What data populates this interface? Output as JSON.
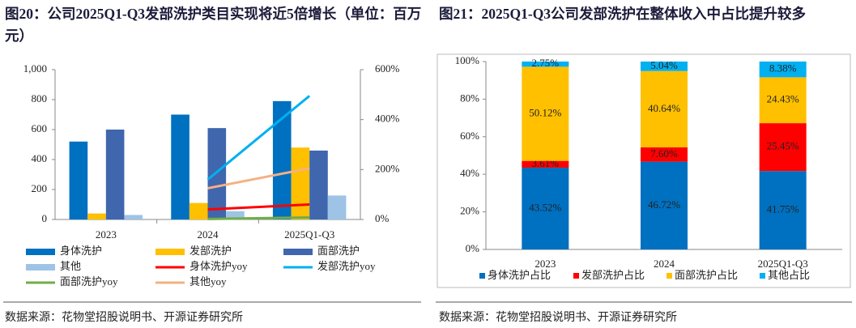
{
  "chart_data": [
    {
      "type": "bar",
      "title": "图20：公司2025Q1-Q3发部洗护类目实现将近5倍增长（单位：百万元）",
      "source": "数据来源：花物堂招股说明书、开源证券研究所",
      "categories": [
        "2023",
        "2024",
        "2025Q1-Q3"
      ],
      "ylim": [
        0,
        1000
      ],
      "yticks": [
        0,
        200,
        400,
        600,
        800,
        {
          "value": 1000,
          "label": "1,000"
        }
      ],
      "y2lim": [
        0,
        600
      ],
      "y2ticks": [
        {
          "value": 0,
          "label": "0%"
        },
        {
          "value": 200,
          "label": "200%"
        },
        {
          "value": 400,
          "label": "400%"
        },
        {
          "value": 600,
          "label": "600%"
        }
      ],
      "series": [
        {
          "name": "身体洗护",
          "color": "#0070c0",
          "values": [
            520,
            700,
            790
          ]
        },
        {
          "name": "发部洗护",
          "color": "#ffc000",
          "values": [
            40,
            110,
            480
          ]
        },
        {
          "name": "面部洗护",
          "color": "#4066ae",
          "values": [
            600,
            610,
            460
          ]
        },
        {
          "name": "其他",
          "color": "#9dc3e6",
          "values": [
            30,
            55,
            160
          ]
        },
        {
          "name": "身体洗护yoy",
          "color": "#ff0000",
          "type": "line",
          "axis": "y2",
          "values": [
            null,
            40,
            60
          ]
        },
        {
          "name": "发部洗护yoy",
          "color": "#00b0f0",
          "type": "line",
          "axis": "y2",
          "values": [
            null,
            160,
            495
          ]
        },
        {
          "name": "面部洗护yoy",
          "color": "#70ad47",
          "type": "line",
          "axis": "y2",
          "values": [
            null,
            2,
            8
          ]
        },
        {
          "name": "其他yoy",
          "color": "#f4b183",
          "type": "line",
          "axis": "y2",
          "values": [
            null,
            125,
            205
          ]
        }
      ]
    },
    {
      "type": "stacked_bar",
      "title": "图21：2025Q1-Q3公司发部洗护在整体收入中占比提升较多",
      "source": "数据来源：花物堂招股说明书、开源证券研究所",
      "categories": [
        "2023",
        "2024",
        "2025Q1-Q3"
      ],
      "ylim": [
        0,
        100
      ],
      "yticks": [
        {
          "value": 0,
          "label": "0%"
        },
        {
          "value": 20,
          "label": "20%"
        },
        {
          "value": 40,
          "label": "40%"
        },
        {
          "value": 60,
          "label": "60%"
        },
        {
          "value": 80,
          "label": "80%"
        },
        {
          "value": 100,
          "label": "100%"
        }
      ],
      "series": [
        {
          "name": "身体洗护占比",
          "color": "#0070c0",
          "values": [
            43.52,
            46.72,
            41.75
          ],
          "value_labels": [
            "43.52%",
            "46.72%",
            "41.75%"
          ]
        },
        {
          "name": "发部洗护占比",
          "color": "#ff0000",
          "values": [
            3.61,
            7.6,
            25.45
          ],
          "value_labels": [
            "3.61%",
            "7.60%",
            "25.45%"
          ]
        },
        {
          "name": "面部洗护占比",
          "color": "#ffc000",
          "values": [
            50.12,
            40.64,
            24.43
          ],
          "value_labels": [
            "50.12%",
            "40.64%",
            "24.43%"
          ]
        },
        {
          "name": "其他占比",
          "color": "#00b0f0",
          "values": [
            2.75,
            5.04,
            8.38
          ],
          "value_labels": [
            "2.75%",
            "5.04%",
            "8.38%"
          ]
        }
      ]
    }
  ]
}
